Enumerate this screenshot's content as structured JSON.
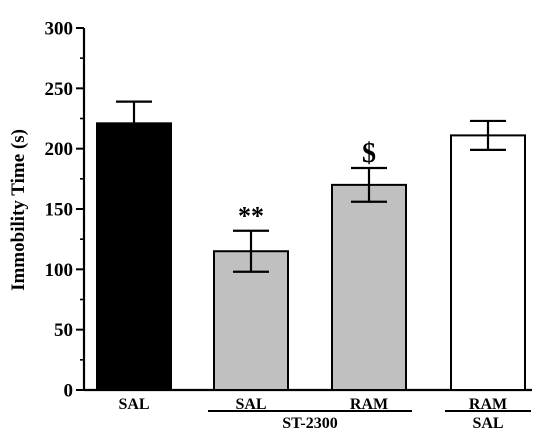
{
  "chart_data": {
    "type": "bar",
    "ylabel": "Immobility Time (s)",
    "ylim": [
      0,
      300
    ],
    "yticks": [
      "0",
      "50",
      "100",
      "150",
      "200",
      "250",
      "300"
    ],
    "categories": [
      "SAL",
      "SAL",
      "RAM",
      "RAM"
    ],
    "values": [
      221,
      115,
      170,
      211
    ],
    "errors": [
      18,
      17,
      14,
      12
    ],
    "bar_colors": [
      "#000000",
      "#c0c0c0",
      "#c0c0c0",
      "#ffffff"
    ],
    "annotations": [
      {
        "category_index": 1,
        "text": "**"
      },
      {
        "category_index": 2,
        "text": "$"
      }
    ],
    "group_labels": [
      {
        "from_index": 1,
        "to_index": 2,
        "text": "ST-2300"
      },
      {
        "from_index": 3,
        "to_index": 3,
        "text": "SAL"
      }
    ]
  }
}
